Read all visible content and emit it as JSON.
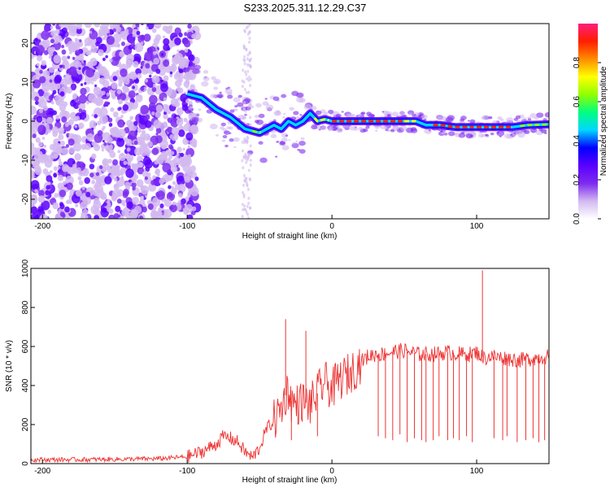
{
  "title": "S233.2025.311.12.29.C37",
  "chart_data": [
    {
      "type": "heatmap",
      "title": "S233.2025.311.12.29.C37",
      "xlabel": "Height of straight line (km)",
      "ylabel": "Frequency (Hz)",
      "xlim": [
        -208,
        150
      ],
      "ylim": [
        -25,
        25
      ],
      "x_ticks": [
        -200,
        -100,
        0,
        100
      ],
      "y_ticks": [
        -20,
        -10,
        0,
        10,
        20
      ],
      "ridge": {
        "x": [
          -100,
          -90,
          -80,
          -70,
          -60,
          -50,
          -45,
          -40,
          -35,
          -30,
          -25,
          -20,
          -15,
          -10,
          -5,
          0,
          10,
          20,
          30,
          40,
          50,
          58,
          65,
          75,
          85,
          95,
          100,
          105,
          115,
          125,
          135,
          150
        ],
        "freq": [
          7,
          6,
          3,
          1,
          -2,
          -3,
          -2,
          -1,
          -2,
          0,
          -1,
          0,
          2,
          0,
          0.5,
          0,
          0,
          0,
          0,
          0,
          0,
          0,
          -1,
          -1,
          -1.5,
          -1.5,
          -1.5,
          -1.5,
          -1.5,
          -1.5,
          -1,
          -0.8
        ]
      },
      "colorbar": {
        "label": "Normalized spectral amplitude",
        "ticks": [
          0.0,
          0.2,
          0.4,
          0.6,
          0.8
        ],
        "range": [
          0,
          1
        ],
        "colors": [
          "#ffffff",
          "#d2b9f0",
          "#7d2bf0",
          "#5a00ff",
          "#0000ff",
          "#00d7ff",
          "#00ff80",
          "#90ff00",
          "#ffff00",
          "#ff8c00",
          "#ff1e00",
          "#ff1e7c"
        ]
      }
    },
    {
      "type": "line",
      "title": "",
      "xlabel": "Height of straight line (km)",
      "ylabel": "SNR (10 * v/v)",
      "xlim": [
        -208,
        150
      ],
      "ylim": [
        0,
        1000
      ],
      "x_ticks": [
        -200,
        -100,
        0,
        100
      ],
      "y_ticks": [
        0,
        200,
        400,
        600,
        800,
        1000
      ],
      "color": "#ee3333",
      "series": [
        {
          "name": "SNR",
          "x": [
            -208,
            -180,
            -150,
            -120,
            -100,
            -90,
            -80,
            -75,
            -70,
            -65,
            -60,
            -55,
            -50,
            -45,
            -40,
            -35,
            -32,
            -30,
            -28,
            -25,
            -20,
            -15,
            -10,
            -5,
            0,
            5,
            10,
            15,
            20,
            25,
            30,
            35,
            40,
            50,
            60,
            70,
            80,
            90,
            95,
            100,
            105,
            110,
            120,
            130,
            140,
            150
          ],
          "y": [
            20,
            20,
            22,
            25,
            35,
            60,
            100,
            140,
            130,
            110,
            60,
            30,
            80,
            180,
            220,
            280,
            350,
            380,
            320,
            300,
            320,
            300,
            360,
            420,
            380,
            430,
            450,
            480,
            520,
            550,
            560,
            560,
            570,
            580,
            560,
            560,
            570,
            560,
            560,
            570,
            540,
            550,
            540,
            530,
            540,
            550
          ]
        }
      ],
      "spikes": {
        "x": [
          -32,
          -28,
          -18,
          -10,
          32,
          37,
          42,
          47,
          52,
          57,
          62,
          65,
          70,
          74,
          80,
          84,
          88,
          93,
          97,
          104,
          112,
          118,
          121,
          128,
          134,
          139,
          143,
          147
        ],
        "y": [
          740,
          120,
          680,
          140,
          140,
          130,
          120,
          150,
          110,
          130,
          120,
          110,
          120,
          140,
          120,
          130,
          120,
          140,
          110,
          990,
          130,
          120,
          140,
          110,
          120,
          130,
          110,
          120
        ]
      }
    }
  ]
}
